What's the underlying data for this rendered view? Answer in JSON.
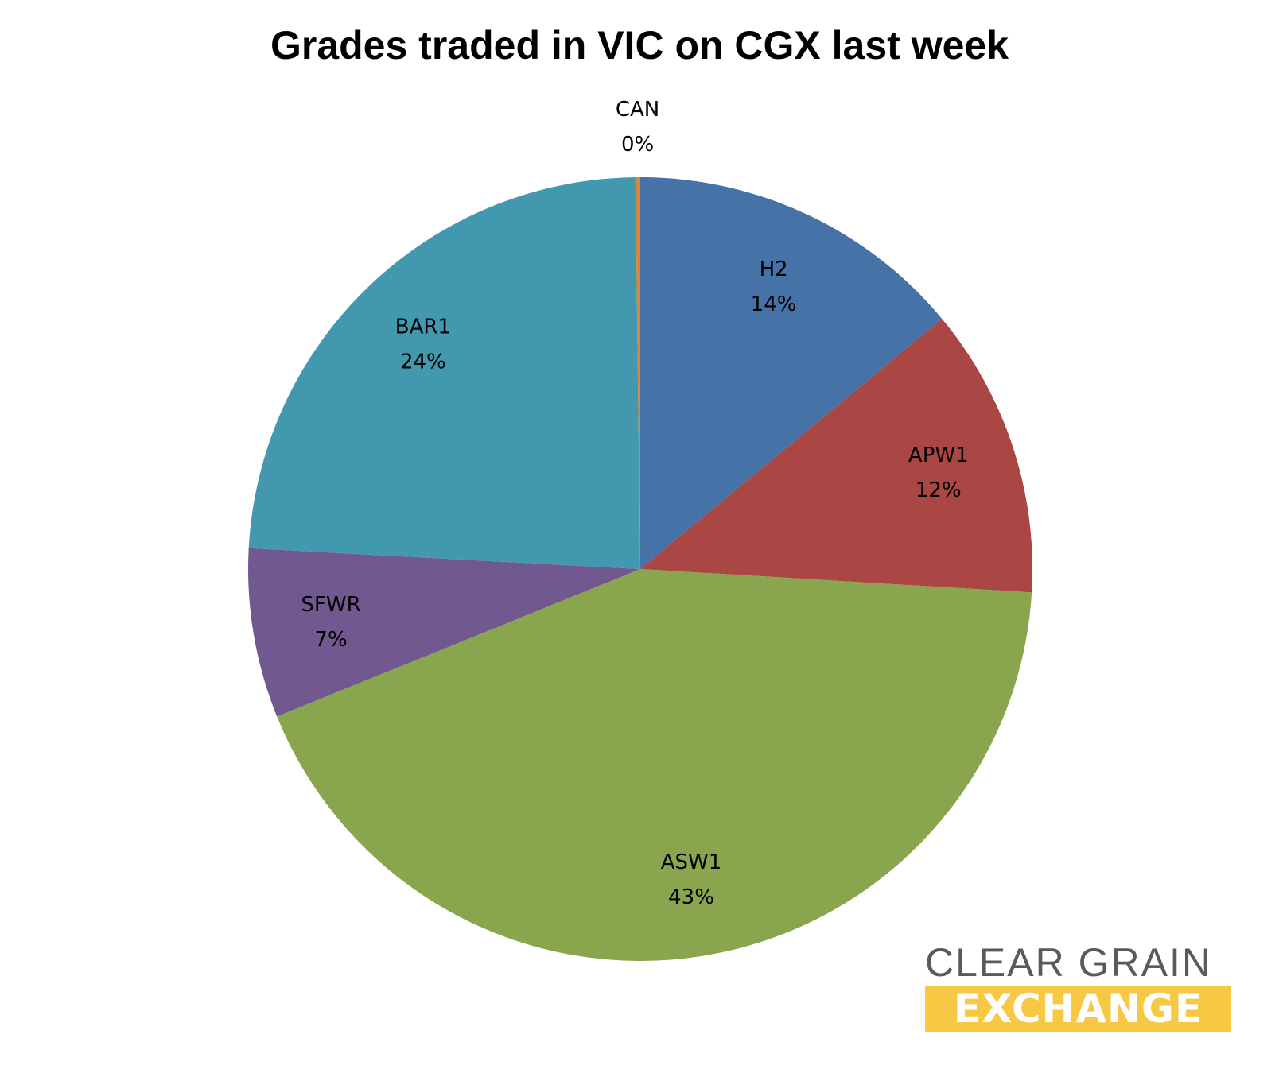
{
  "chart_data": {
    "type": "pie",
    "title": "Grades traded in VIC on CGX last week",
    "start": "top",
    "direction": "clockwise",
    "slices": [
      {
        "name": "H2",
        "value": 14,
        "label": "14%",
        "color": "#4572a7"
      },
      {
        "name": "APW1",
        "value": 12,
        "label": "12%",
        "color": "#aa4643"
      },
      {
        "name": "ASW1",
        "value": 43,
        "label": "43%",
        "color": "#89a54e"
      },
      {
        "name": "SFWR",
        "value": 7,
        "label": "7%",
        "color": "#71588f"
      },
      {
        "name": "BAR1",
        "value": 24,
        "label": "24%",
        "color": "#4198af"
      },
      {
        "name": "CAN",
        "value": 0.2,
        "label": "0%",
        "color": "#db843d"
      }
    ]
  },
  "logo": {
    "line1": "CLEAR GRAIN",
    "line2": "EXCHANGE",
    "text_color": "#5a5a5a",
    "band_color": "#f7c844"
  }
}
